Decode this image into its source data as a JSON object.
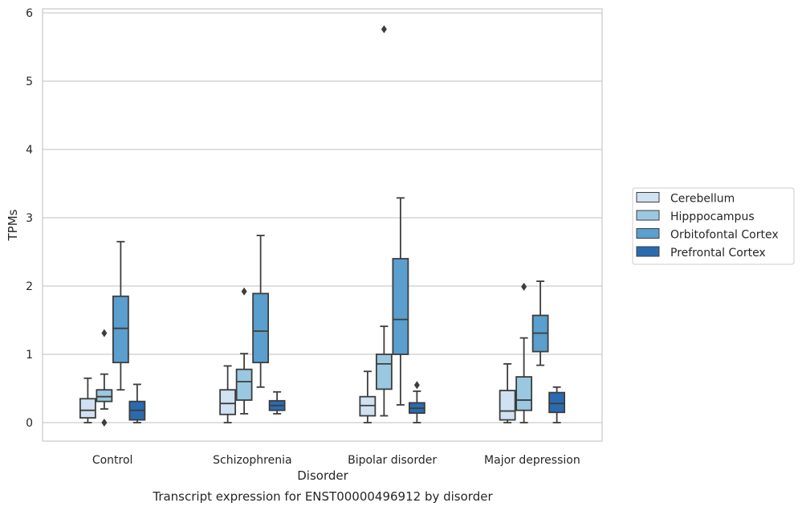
{
  "caption": "Transcript expression for ENST00000496912 by disorder",
  "chart_data": {
    "type": "box",
    "title": "",
    "xlabel": "Disorder",
    "ylabel": "TPMs",
    "ylim": [
      -0.27,
      6.05
    ],
    "yticks": [
      0,
      1,
      2,
      3,
      4,
      5,
      6
    ],
    "grid": true,
    "legend_position": "right",
    "categories": [
      "Control",
      "Schizophrenia",
      "Bipolar disorder",
      "Major depression"
    ],
    "series": [
      {
        "name": "Cerebellum",
        "color": "#d0e1f2",
        "boxes": [
          {
            "whisker_low": 0.0,
            "q1": 0.07,
            "median": 0.18,
            "q3": 0.35,
            "whisker_high": 0.65,
            "outliers": []
          },
          {
            "whisker_low": 0.0,
            "q1": 0.12,
            "median": 0.28,
            "q3": 0.48,
            "whisker_high": 0.83,
            "outliers": []
          },
          {
            "whisker_low": 0.0,
            "q1": 0.1,
            "median": 0.25,
            "q3": 0.38,
            "whisker_high": 0.75,
            "outliers": []
          },
          {
            "whisker_low": 0.0,
            "q1": 0.04,
            "median": 0.17,
            "q3": 0.47,
            "whisker_high": 0.86,
            "outliers": []
          }
        ]
      },
      {
        "name": "Hipppocampus",
        "color": "#9ac8e0",
        "boxes": [
          {
            "whisker_low": 0.2,
            "q1": 0.31,
            "median": 0.38,
            "q3": 0.48,
            "whisker_high": 0.71,
            "outliers": [
              1.31,
              0.0
            ]
          },
          {
            "whisker_low": 0.13,
            "q1": 0.33,
            "median": 0.6,
            "q3": 0.78,
            "whisker_high": 1.01,
            "outliers": [
              1.92
            ]
          },
          {
            "whisker_low": 0.1,
            "q1": 0.49,
            "median": 0.86,
            "q3": 1.0,
            "whisker_high": 1.41,
            "outliers": [
              5.76
            ]
          },
          {
            "whisker_low": 0.0,
            "q1": 0.18,
            "median": 0.33,
            "q3": 0.67,
            "whisker_high": 1.24,
            "outliers": [
              1.99
            ]
          }
        ]
      },
      {
        "name": "Orbitofontal Cortex",
        "color": "#5a9fcd",
        "boxes": [
          {
            "whisker_low": 0.48,
            "q1": 0.88,
            "median": 1.38,
            "q3": 1.85,
            "whisker_high": 2.65,
            "outliers": []
          },
          {
            "whisker_low": 0.52,
            "q1": 0.88,
            "median": 1.34,
            "q3": 1.89,
            "whisker_high": 2.74,
            "outliers": []
          },
          {
            "whisker_low": 0.26,
            "q1": 1.0,
            "median": 1.51,
            "q3": 2.4,
            "whisker_high": 3.29,
            "outliers": []
          },
          {
            "whisker_low": 0.84,
            "q1": 1.04,
            "median": 1.31,
            "q3": 1.57,
            "whisker_high": 2.07,
            "outliers": []
          }
        ]
      },
      {
        "name": "Prefrontal Cortex",
        "color": "#2a6bb0",
        "boxes": [
          {
            "whisker_low": 0.0,
            "q1": 0.04,
            "median": 0.18,
            "q3": 0.31,
            "whisker_high": 0.56,
            "outliers": []
          },
          {
            "whisker_low": 0.13,
            "q1": 0.18,
            "median": 0.25,
            "q3": 0.32,
            "whisker_high": 0.45,
            "outliers": []
          },
          {
            "whisker_low": 0.0,
            "q1": 0.14,
            "median": 0.21,
            "q3": 0.29,
            "whisker_high": 0.46,
            "outliers": [
              0.55
            ]
          },
          {
            "whisker_low": 0.0,
            "q1": 0.15,
            "median": 0.28,
            "q3": 0.44,
            "whisker_high": 0.52,
            "outliers": []
          }
        ]
      }
    ]
  }
}
